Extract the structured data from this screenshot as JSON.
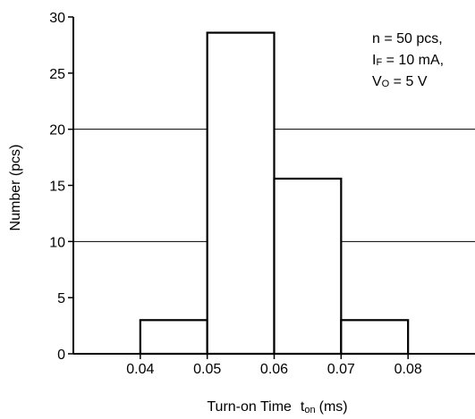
{
  "chart_data": {
    "type": "bar",
    "title": "",
    "xlabel": "Turn-on Time",
    "xlabel_symbol": "t",
    "xlabel_symbol_sub": "on",
    "xlabel_unit": "(ms)",
    "ylabel": "Number  (pcs)",
    "bins": [
      {
        "from": 0.04,
        "to": 0.05,
        "count": 3
      },
      {
        "from": 0.05,
        "to": 0.06,
        "count": 28.6
      },
      {
        "from": 0.06,
        "to": 0.07,
        "count": 15.6
      },
      {
        "from": 0.07,
        "to": 0.08,
        "count": 3
      }
    ],
    "xlim": [
      0.03,
      0.09
    ],
    "ylim": [
      0,
      30
    ],
    "x_ticks": [
      "0.04",
      "0.05",
      "0.06",
      "0.07",
      "0.08"
    ],
    "y_ticks": [
      "0",
      "5",
      "10",
      "15",
      "20",
      "25",
      "30"
    ],
    "gridlines_y": [
      10,
      20
    ],
    "annotation": {
      "line1": "n = 50 pcs,",
      "line2_main": "I",
      "line2_sub": "F",
      "line2_rest": " = 10 mA,",
      "line3_main": "V",
      "line3_sub": "O",
      "line3_rest": " = 5 V"
    },
    "colors": {
      "bar_fill": "#ffffff",
      "stroke": "#000000",
      "background": "#ffffff"
    }
  }
}
